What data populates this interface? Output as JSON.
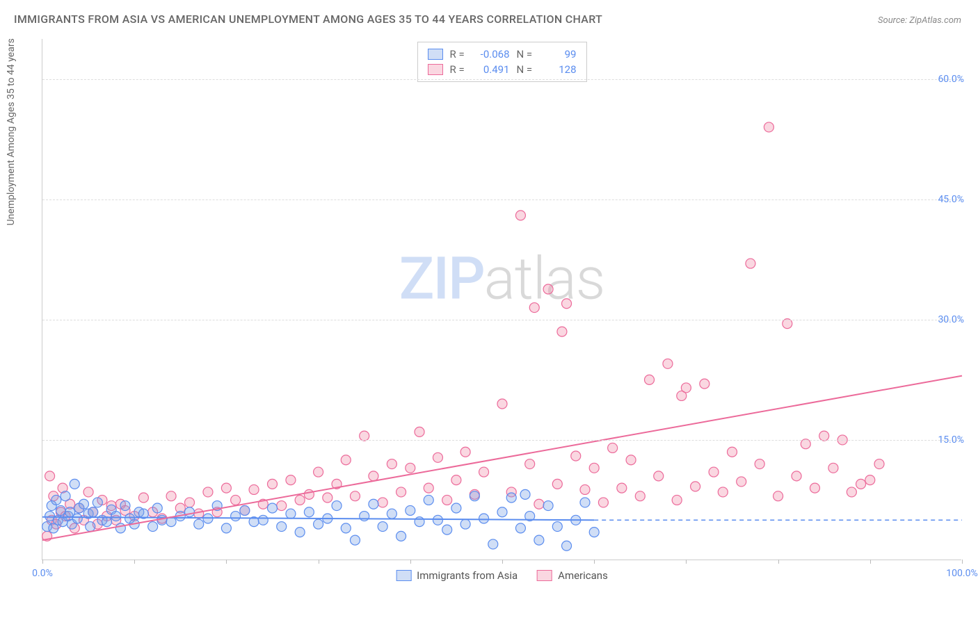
{
  "title": "IMMIGRANTS FROM ASIA VS AMERICAN UNEMPLOYMENT AMONG AGES 35 TO 44 YEARS CORRELATION CHART",
  "source": "Source: ZipAtlas.com",
  "y_axis_label": "Unemployment Among Ages 35 to 44 years",
  "watermark_a": "ZIP",
  "watermark_b": "atlas",
  "chart": {
    "type": "scatter",
    "xlim": [
      0,
      100
    ],
    "ylim": [
      0,
      65
    ],
    "x_tick_positions": [
      0,
      10,
      20,
      30,
      40,
      50,
      60,
      70,
      80,
      90,
      100
    ],
    "x_tick_labels": {
      "0": "0.0%",
      "100": "100.0%"
    },
    "y_ticks": [
      15,
      30,
      45,
      60
    ],
    "y_tick_labels": [
      "15.0%",
      "30.0%",
      "45.0%",
      "60.0%"
    ],
    "grid_color": "#dddddd",
    "background_color": "#ffffff",
    "axis_color": "#cccccc",
    "label_color": "#5b8def",
    "marker_radius": 7,
    "marker_stroke_width": 1.2,
    "trend_line_width": 2,
    "dash_line_width": 1.5
  },
  "series": {
    "blue": {
      "name": "Immigrants from Asia",
      "fill": "rgba(120,160,230,0.35)",
      "stroke": "#5b8def",
      "r": "-0.068",
      "n": "99",
      "trend": {
        "x1": 0,
        "y1": 5.4,
        "x2": 60,
        "y2": 5.0
      },
      "dash": {
        "x1": 60,
        "y1": 5.0,
        "x2": 100,
        "y2": 5.0
      },
      "points": [
        [
          0.5,
          4.2
        ],
        [
          0.8,
          5.5
        ],
        [
          1.0,
          6.8
        ],
        [
          1.2,
          4.0
        ],
        [
          1.5,
          7.5
        ],
        [
          1.7,
          5.0
        ],
        [
          2.0,
          6.2
        ],
        [
          2.2,
          4.8
        ],
        [
          2.5,
          8.0
        ],
        [
          2.8,
          5.5
        ],
        [
          3.0,
          6.0
        ],
        [
          3.2,
          4.5
        ],
        [
          3.5,
          9.5
        ],
        [
          3.8,
          5.2
        ],
        [
          4.0,
          6.5
        ],
        [
          4.5,
          7.0
        ],
        [
          5.0,
          5.8
        ],
        [
          5.2,
          4.2
        ],
        [
          5.5,
          6.0
        ],
        [
          6.0,
          7.2
        ],
        [
          6.5,
          5.0
        ],
        [
          7.0,
          4.8
        ],
        [
          7.5,
          6.3
        ],
        [
          8.0,
          5.5
        ],
        [
          8.5,
          4.0
        ],
        [
          9.0,
          6.8
        ],
        [
          9.5,
          5.2
        ],
        [
          10.0,
          4.5
        ],
        [
          10.5,
          6.0
        ],
        [
          11.0,
          5.8
        ],
        [
          12.0,
          4.2
        ],
        [
          12.5,
          6.5
        ],
        [
          13.0,
          5.0
        ],
        [
          14.0,
          4.8
        ],
        [
          15.0,
          5.5
        ],
        [
          16.0,
          6.0
        ],
        [
          17.0,
          4.5
        ],
        [
          18.0,
          5.2
        ],
        [
          19.0,
          6.8
        ],
        [
          20.0,
          4.0
        ],
        [
          21.0,
          5.5
        ],
        [
          22.0,
          6.2
        ],
        [
          23.0,
          4.8
        ],
        [
          24.0,
          5.0
        ],
        [
          25.0,
          6.5
        ],
        [
          26.0,
          4.2
        ],
        [
          27.0,
          5.8
        ],
        [
          28.0,
          3.5
        ],
        [
          29.0,
          6.0
        ],
        [
          30.0,
          4.5
        ],
        [
          31.0,
          5.2
        ],
        [
          32.0,
          6.8
        ],
        [
          33.0,
          4.0
        ],
        [
          34.0,
          2.5
        ],
        [
          35.0,
          5.5
        ],
        [
          36.0,
          7.0
        ],
        [
          37.0,
          4.2
        ],
        [
          38.0,
          5.8
        ],
        [
          39.0,
          3.0
        ],
        [
          40.0,
          6.2
        ],
        [
          41.0,
          4.8
        ],
        [
          42.0,
          7.5
        ],
        [
          43.0,
          5.0
        ],
        [
          44.0,
          3.8
        ],
        [
          45.0,
          6.5
        ],
        [
          46.0,
          4.5
        ],
        [
          47.0,
          8.0
        ],
        [
          48.0,
          5.2
        ],
        [
          49.0,
          2.0
        ],
        [
          50.0,
          6.0
        ],
        [
          51.0,
          7.8
        ],
        [
          52.0,
          4.0
        ],
        [
          52.5,
          8.2
        ],
        [
          53.0,
          5.5
        ],
        [
          54.0,
          2.5
        ],
        [
          55.0,
          6.8
        ],
        [
          56.0,
          4.2
        ],
        [
          57.0,
          1.8
        ],
        [
          58.0,
          5.0
        ],
        [
          59.0,
          7.2
        ],
        [
          60.0,
          3.5
        ]
      ]
    },
    "pink": {
      "name": "Americans",
      "fill": "rgba(240,140,170,0.35)",
      "stroke": "#ec6a9a",
      "r": "0.491",
      "n": "128",
      "trend": {
        "x1": 0,
        "y1": 2.5,
        "x2": 100,
        "y2": 23.0
      },
      "points": [
        [
          0.5,
          3.0
        ],
        [
          0.8,
          10.5
        ],
        [
          1.0,
          5.0
        ],
        [
          1.2,
          8.0
        ],
        [
          1.5,
          4.5
        ],
        [
          2.0,
          6.0
        ],
        [
          2.2,
          9.0
        ],
        [
          2.5,
          5.5
        ],
        [
          3.0,
          7.0
        ],
        [
          3.5,
          4.0
        ],
        [
          4.0,
          6.5
        ],
        [
          4.5,
          5.0
        ],
        [
          5.0,
          8.5
        ],
        [
          5.5,
          6.0
        ],
        [
          6.0,
          4.5
        ],
        [
          6.5,
          7.5
        ],
        [
          7.0,
          5.5
        ],
        [
          7.5,
          6.8
        ],
        [
          8.0,
          5.0
        ],
        [
          8.5,
          7.0
        ],
        [
          9.0,
          6.2
        ],
        [
          10.0,
          5.5
        ],
        [
          11.0,
          7.8
        ],
        [
          12.0,
          6.0
        ],
        [
          13.0,
          5.2
        ],
        [
          14.0,
          8.0
        ],
        [
          15.0,
          6.5
        ],
        [
          16.0,
          7.2
        ],
        [
          17.0,
          5.8
        ],
        [
          18.0,
          8.5
        ],
        [
          19.0,
          6.0
        ],
        [
          20.0,
          9.0
        ],
        [
          21.0,
          7.5
        ],
        [
          22.0,
          6.2
        ],
        [
          23.0,
          8.8
        ],
        [
          24.0,
          7.0
        ],
        [
          25.0,
          9.5
        ],
        [
          26.0,
          6.8
        ],
        [
          27.0,
          10.0
        ],
        [
          28.0,
          7.5
        ],
        [
          29.0,
          8.2
        ],
        [
          30.0,
          11.0
        ],
        [
          31.0,
          7.8
        ],
        [
          32.0,
          9.5
        ],
        [
          33.0,
          12.5
        ],
        [
          34.0,
          8.0
        ],
        [
          35.0,
          15.5
        ],
        [
          36.0,
          10.5
        ],
        [
          37.0,
          7.2
        ],
        [
          38.0,
          12.0
        ],
        [
          39.0,
          8.5
        ],
        [
          40.0,
          11.5
        ],
        [
          41.0,
          16.0
        ],
        [
          42.0,
          9.0
        ],
        [
          43.0,
          12.8
        ],
        [
          44.0,
          7.5
        ],
        [
          45.0,
          10.0
        ],
        [
          46.0,
          13.5
        ],
        [
          47.0,
          8.2
        ],
        [
          48.0,
          11.0
        ],
        [
          50.0,
          19.5
        ],
        [
          51.0,
          8.5
        ],
        [
          52.0,
          43.0
        ],
        [
          53.0,
          12.0
        ],
        [
          53.5,
          31.5
        ],
        [
          54.0,
          7.0
        ],
        [
          55.0,
          33.8
        ],
        [
          56.0,
          9.5
        ],
        [
          56.5,
          28.5
        ],
        [
          57.0,
          32.0
        ],
        [
          58.0,
          13.0
        ],
        [
          59.0,
          8.8
        ],
        [
          60.0,
          11.5
        ],
        [
          61.0,
          7.2
        ],
        [
          62.0,
          14.0
        ],
        [
          63.0,
          9.0
        ],
        [
          64.0,
          12.5
        ],
        [
          65.0,
          8.0
        ],
        [
          66.0,
          22.5
        ],
        [
          67.0,
          10.5
        ],
        [
          68.0,
          24.5
        ],
        [
          69.0,
          7.5
        ],
        [
          69.5,
          20.5
        ],
        [
          70.0,
          21.5
        ],
        [
          71.0,
          9.2
        ],
        [
          72.0,
          22.0
        ],
        [
          73.0,
          11.0
        ],
        [
          74.0,
          8.5
        ],
        [
          75.0,
          13.5
        ],
        [
          76.0,
          9.8
        ],
        [
          77.0,
          37.0
        ],
        [
          78.0,
          12.0
        ],
        [
          79.0,
          54.0
        ],
        [
          80.0,
          8.0
        ],
        [
          81.0,
          29.5
        ],
        [
          82.0,
          10.5
        ],
        [
          83.0,
          14.5
        ],
        [
          84.0,
          9.0
        ],
        [
          85.0,
          15.5
        ],
        [
          86.0,
          11.5
        ],
        [
          87.0,
          15.0
        ],
        [
          88.0,
          8.5
        ],
        [
          89.0,
          9.5
        ],
        [
          90.0,
          10.0
        ],
        [
          91.0,
          12.0
        ]
      ]
    }
  },
  "stats_box": {
    "r_label": "R =",
    "n_label": "N ="
  },
  "legend": {
    "blue_label": "Immigrants from Asia",
    "pink_label": "Americans"
  }
}
